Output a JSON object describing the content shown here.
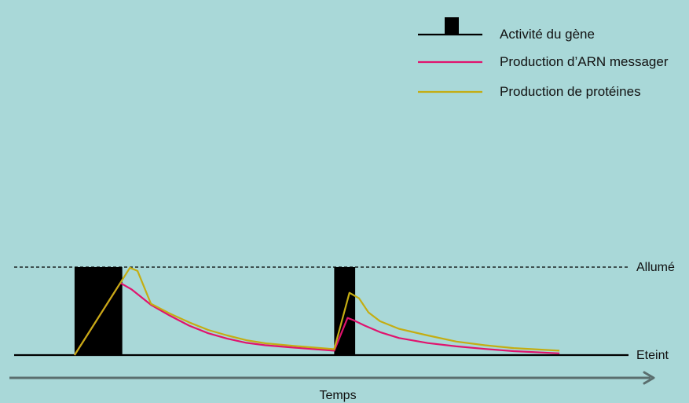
{
  "chart_data": {
    "type": "line",
    "x": [
      0,
      1,
      2,
      3,
      4,
      5,
      6,
      7,
      8,
      9,
      10,
      11,
      12,
      13,
      14,
      15,
      16,
      17,
      18,
      19,
      20,
      21,
      22,
      23,
      24,
      25,
      26,
      27,
      28,
      29,
      30,
      31,
      32,
      33,
      34,
      35,
      36,
      37,
      38,
      39,
      40
    ],
    "xlabel": "Temps",
    "ylevels": {
      "off": "Eteint",
      "on": "Allumé"
    },
    "gene_activity_intervals": [
      [
        3.0,
        5.5
      ],
      [
        16.6,
        17.7
      ]
    ],
    "series": [
      {
        "name": "Production d’ARN messager",
        "color": "#e0136e",
        "points": [
          [
            3.0,
            0.0
          ],
          [
            5.4,
            3.3
          ],
          [
            6.0,
            3.0
          ],
          [
            7.0,
            2.3
          ],
          [
            8.0,
            1.8
          ],
          [
            9.0,
            1.35
          ],
          [
            10.0,
            1.0
          ],
          [
            11.0,
            0.75
          ],
          [
            12.0,
            0.56
          ],
          [
            13.0,
            0.45
          ],
          [
            14.5,
            0.34
          ],
          [
            16.6,
            0.2
          ],
          [
            17.3,
            1.7
          ],
          [
            17.6,
            1.6
          ],
          [
            18.2,
            1.35
          ],
          [
            19.0,
            1.05
          ],
          [
            20.0,
            0.78
          ],
          [
            21.5,
            0.55
          ],
          [
            23.0,
            0.4
          ],
          [
            24.5,
            0.28
          ],
          [
            26.0,
            0.18
          ],
          [
            28.4,
            0.08
          ]
        ]
      },
      {
        "name": "Production de protéines",
        "color": "#c4ad13",
        "points": [
          [
            3.0,
            0.0
          ],
          [
            5.9,
            4.0
          ],
          [
            6.3,
            3.85
          ],
          [
            7.0,
            2.35
          ],
          [
            8.0,
            1.9
          ],
          [
            9.0,
            1.5
          ],
          [
            10.0,
            1.15
          ],
          [
            11.0,
            0.9
          ],
          [
            12.0,
            0.68
          ],
          [
            13.0,
            0.54
          ],
          [
            14.5,
            0.42
          ],
          [
            16.6,
            0.27
          ],
          [
            17.4,
            2.85
          ],
          [
            17.9,
            2.6
          ],
          [
            18.4,
            1.95
          ],
          [
            19.0,
            1.55
          ],
          [
            20.0,
            1.2
          ],
          [
            21.5,
            0.9
          ],
          [
            23.0,
            0.62
          ],
          [
            24.5,
            0.45
          ],
          [
            26.0,
            0.32
          ],
          [
            28.4,
            0.2
          ]
        ]
      }
    ],
    "legend": [
      "Activité du gène",
      "Production d’ARN messager",
      "Production de protéines"
    ],
    "legend_position": "top-right",
    "colors": {
      "background": "#a9d8d8",
      "gene": "#000000",
      "axis": "#5a6e6e",
      "line": "#000000"
    }
  }
}
